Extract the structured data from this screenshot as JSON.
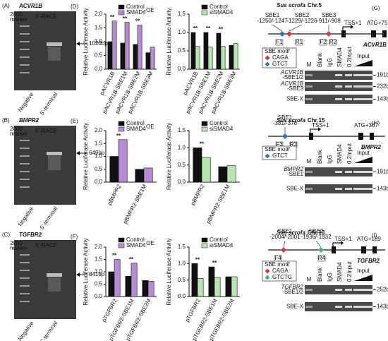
{
  "gels": [
    {
      "panel": "(A)",
      "gene": "ACVR1B",
      "method": "5'-RACE",
      "marker": [
        "2000",
        "marker"
      ],
      "band": "1020bp",
      "lanes": [
        "Negative",
        "5'-terminal"
      ]
    },
    {
      "panel": "(B)",
      "gene": "BMPR2",
      "method": "5'-RACE",
      "marker": [
        "2000",
        "marker"
      ],
      "band": "649bp",
      "lanes": [
        "Negative",
        "5'-terminal"
      ]
    },
    {
      "panel": "(C)",
      "gene": "TGFBR2",
      "method": "5'-RACE",
      "marker": [
        "2000",
        "marker"
      ],
      "band": "841bp",
      "lanes": [
        "Negative",
        "5'-terminal"
      ]
    }
  ],
  "chart_panels": [
    "(D)",
    "(E)",
    "(F)"
  ],
  "chart_data": [
    {
      "type": "bar",
      "ylabel": "Relative Luciferase Activity",
      "categories": [
        "pACVR1B",
        "pACVR1B-SBE1M",
        "pACVR1B-SBE2M",
        "pACVR1B-SBE3M"
      ],
      "series": [
        {
          "name": "Control",
          "color": "#111111",
          "values": [
            1.0,
            0.95,
            0.9,
            0.6
          ]
        },
        {
          "name": "SMAD4",
          "sup": "OE",
          "color": "#b58bd6",
          "values": [
            1.75,
            1.7,
            1.6,
            0.8
          ]
        }
      ],
      "ylim": [
        0,
        2
      ],
      "yticks": [
        {
          "value": 0,
          "label": "0.0"
        },
        {
          "value": 0.5,
          "label": "0.5"
        },
        {
          "value": 1,
          "label": "1.0"
        },
        {
          "value": 1.5,
          "label": "1.5"
        },
        {
          "value": 2,
          "label": "2.0"
        }
      ],
      "significance": [
        "**",
        "**",
        "**",
        null
      ]
    },
    {
      "type": "bar",
      "ylabel": "Relative Luciferase Activity",
      "categories": [
        "pACVR1B",
        "pACVR1B-SBE1M",
        "pACVR1B-SBE2M",
        "pACVR1B-SBE3M"
      ],
      "series": [
        {
          "name": "Control",
          "color": "#111111",
          "values": [
            1.0,
            1.0,
            0.98,
            0.65
          ]
        },
        {
          "name": "siSMAD4",
          "color": "#b8e4b2",
          "values": [
            0.62,
            0.6,
            0.62,
            0.7
          ]
        }
      ],
      "ylim": [
        0,
        1.5
      ],
      "yticks": [
        {
          "value": 0,
          "label": "0.0"
        },
        {
          "value": 0.5,
          "label": "0.5"
        },
        {
          "value": 1,
          "label": "1.0"
        },
        {
          "value": 1.5,
          "label": "1.5"
        }
      ],
      "significance": [
        "**",
        "**",
        "**",
        null
      ]
    },
    {
      "type": "bar",
      "ylabel": "Relative Luciferase Activity",
      "categories": [
        "pBMPR2",
        "pBMPR2-SBE1M"
      ],
      "series": [
        {
          "name": "Control",
          "color": "#111111",
          "values": [
            1.0,
            0.5
          ]
        },
        {
          "name": "SMAD4",
          "sup": "OE",
          "color": "#b58bd6",
          "values": [
            1.65,
            0.55
          ]
        }
      ],
      "ylim": [
        0,
        2
      ],
      "yticks": [
        {
          "value": 0,
          "label": "0.0"
        },
        {
          "value": 0.5,
          "label": "0.5"
        },
        {
          "value": 1,
          "label": "1.0"
        },
        {
          "value": 1.5,
          "label": "1.5"
        },
        {
          "value": 2,
          "label": "2.0"
        }
      ],
      "significance": [
        "**",
        null
      ]
    },
    {
      "type": "bar",
      "ylabel": "Relative Luciferase Activity",
      "categories": [
        "pBMPR2",
        "pBMPR2-SBE1M"
      ],
      "series": [
        {
          "name": "Control",
          "color": "#111111",
          "values": [
            1.0,
            0.45
          ]
        },
        {
          "name": "siSMAD4",
          "color": "#b8e4b2",
          "values": [
            0.72,
            0.48
          ]
        }
      ],
      "ylim": [
        0,
        1.5
      ],
      "yticks": [
        {
          "value": 0,
          "label": "0.0"
        },
        {
          "value": 0.5,
          "label": "0.5"
        },
        {
          "value": 1,
          "label": "1.0"
        },
        {
          "value": 1.5,
          "label": "1.5"
        }
      ],
      "significance": [
        "**",
        null
      ]
    },
    {
      "type": "bar",
      "ylabel": "Relative Luciferase Activity",
      "categories": [
        "pTGFBR2",
        "pTGFBR2-SBE1M",
        "pTGFBR2-SBE2M"
      ],
      "series": [
        {
          "name": "Control",
          "color": "#111111",
          "values": [
            1.0,
            0.82,
            0.65
          ]
        },
        {
          "name": "SMAD4",
          "sup": "OE",
          "color": "#b58bd6",
          "values": [
            1.5,
            1.35,
            0.62
          ]
        }
      ],
      "ylim": [
        0,
        2
      ],
      "yticks": [
        {
          "value": 0,
          "label": "0.0"
        },
        {
          "value": 0.5,
          "label": "0.5"
        },
        {
          "value": 1,
          "label": "1.0"
        },
        {
          "value": 1.5,
          "label": "1.5"
        },
        {
          "value": 2,
          "label": "2.0"
        }
      ],
      "significance": [
        "**",
        "**",
        null
      ]
    },
    {
      "type": "bar",
      "ylabel": "Relative Luciferase Activity",
      "categories": [
        "pTGFBR2",
        "pTGFBR2-SBE1M",
        "pTGFBR2-SBE2M"
      ],
      "series": [
        {
          "name": "Control",
          "color": "#111111",
          "values": [
            1.0,
            0.9,
            0.6
          ]
        },
        {
          "name": "siSMAD4",
          "color": "#b8e4b2",
          "values": [
            0.55,
            0.58,
            0.6
          ]
        }
      ],
      "ylim": [
        0,
        1.5
      ],
      "yticks": [
        {
          "value": 0,
          "label": "0.0"
        },
        {
          "value": 0.5,
          "label": "0.5"
        },
        {
          "value": 1,
          "label": "1.0"
        },
        {
          "value": 1.5,
          "label": "1.5"
        }
      ],
      "significance": [
        "**",
        "**",
        null
      ]
    }
  ],
  "chips": [
    {
      "panel": "(G)",
      "species": "Sus scrofa",
      "chr": "Chr.5",
      "sites": [
        {
          "name": "SBE1",
          "pos": "-1250/-1247",
          "color": "#2f6fd1"
        },
        {
          "name": "SBE2",
          "pos": "-1229/-1226",
          "color": "#d9383a"
        },
        {
          "name": "SBE3",
          "pos": "-911/-908",
          "color": "#d9383a"
        }
      ],
      "tss": "TSS+1",
      "atg": "ATG+75",
      "gene": "ACVR1B",
      "primers": [
        "F1",
        "R1",
        "F2",
        "R2"
      ],
      "motif_title": "SBE motif",
      "motifs": [
        {
          "name": "CAGA",
          "color": "#d9383a"
        },
        {
          "name": "GTCT",
          "color": "#2f6fd1"
        }
      ],
      "lanes": [
        "M",
        "Blank",
        "IgG",
        "SMAD4",
        "0.2Input",
        "Input"
      ],
      "rows": [
        {
          "label": [
            "ACVR1B",
            "-SBE1/2"
          ],
          "size": "191bp"
        },
        {
          "label": [
            "ACVR1B",
            "-SBE3"
          ],
          "size": "232bp"
        },
        {
          "label": [
            "SBE-X"
          ],
          "size": "143bp"
        }
      ]
    },
    {
      "panel": "(H)",
      "species": "Sus scrofa",
      "chr": "Chr.15",
      "sites": [
        {
          "name": "SBE1",
          "pos": "-381/-378",
          "color": "#2f6fd1"
        }
      ],
      "tss": "TSS+1",
      "atg": "ATG+367",
      "gene": "BMPR2",
      "primers": [
        "F3",
        "R3"
      ],
      "motif_title": "SBE motif",
      "motifs": [
        {
          "name": "GTCT",
          "color": "#2f6fd1"
        }
      ],
      "lanes": [
        "M",
        "Blank",
        "IgG",
        "SMAD4",
        "0.2Input",
        "Input"
      ],
      "rows": [
        {
          "label": [
            "BMPR2",
            "-SBE1"
          ],
          "size": "191bp"
        },
        {
          "label": [
            "SBE-X"
          ],
          "size": "143bp"
        }
      ]
    },
    {
      "panel": "(I)",
      "species": "Sus scrofa",
      "chr": "Chr.13",
      "sites": [
        {
          "name": "SBE1",
          "pos": "-2004/-2001",
          "color": "#d9383a"
        },
        {
          "name": "SBE2",
          "pos": "-1936/-1932",
          "color": "#3fb86a"
        }
      ],
      "tss": "TSS+1",
      "atg": "ATG+189",
      "gene": "TGFBR2",
      "primers": [
        "F4",
        "R4"
      ],
      "motif_title": "SBE motif",
      "motifs": [
        {
          "name": "CAGA",
          "color": "#d9383a"
        },
        {
          "name": "GTCTG",
          "color": "#3fb86a"
        }
      ],
      "lanes": [
        "M",
        "Blank",
        "IgG",
        "SMAD4",
        "0.2Input",
        "Input"
      ],
      "rows": [
        {
          "label": [
            "TGFBR2",
            "-SBE1/2"
          ],
          "size": "252bp"
        },
        {
          "label": [
            "SBE-X"
          ],
          "size": "143bp"
        }
      ]
    }
  ]
}
